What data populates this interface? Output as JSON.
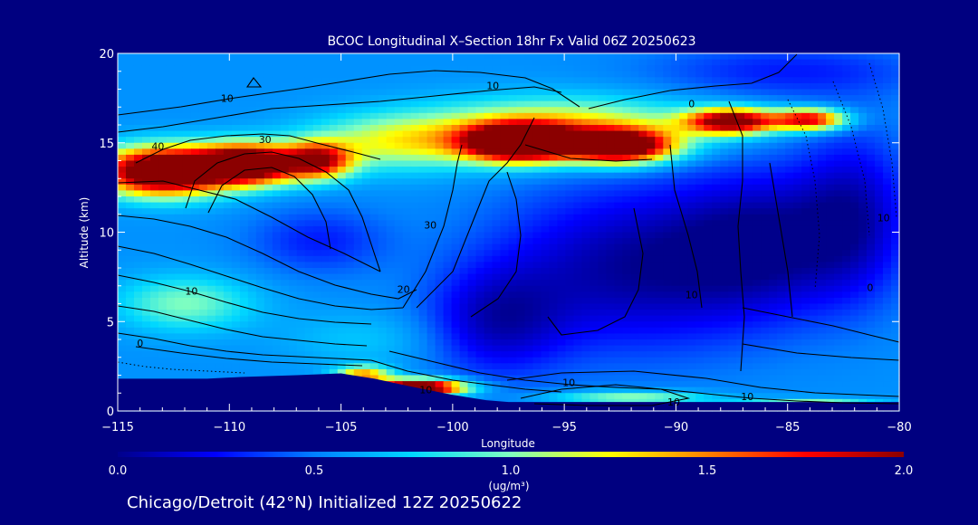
{
  "chart_data": {
    "type": "heatmap",
    "title": "BCOC Longitudinal X–Section 18hr  Fx Valid 06Z 20250623",
    "subtitle": "Chicago/Detroit (42°N) Initialized 12Z 20250622",
    "xlabel": "Longitude",
    "ylabel": "Altitude (km)",
    "xlim": [
      -115,
      -80
    ],
    "ylim": [
      0,
      20
    ],
    "x_ticks": [
      -115,
      -110,
      -105,
      -100,
      -95,
      -90,
      -85,
      -80
    ],
    "x_tick_labels": [
      "−115",
      "−110",
      "−105",
      "−100",
      "−95",
      "−90",
      "−85",
      "−80"
    ],
    "y_ticks": [
      0,
      5,
      10,
      15,
      20
    ],
    "y_tick_labels": [
      "0",
      "5",
      "10",
      "15",
      "20"
    ],
    "colorbar": {
      "range": [
        0.0,
        2.0
      ],
      "ticks": [
        0.0,
        0.5,
        1.0,
        1.5,
        2.0
      ],
      "tick_labels": [
        "0.0",
        "0.5",
        "1.0",
        "1.5",
        "2.0"
      ],
      "unit_label": "(ug/m³)",
      "colors": [
        "#00008b",
        "#0000ff",
        "#0080ff",
        "#00d8ff",
        "#80ffc0",
        "#ffff00",
        "#ff8000",
        "#ff0000",
        "#8b0000"
      ]
    },
    "concentration_field": {
      "background_value": 0.55,
      "features": [
        {
          "lon": -113.0,
          "alt": 13.4,
          "value": 2.0,
          "sx": 2.8,
          "sy": 1.3
        },
        {
          "lon": -109.2,
          "alt": 13.8,
          "value": 1.9,
          "sx": 2.3,
          "sy": 1.1
        },
        {
          "lon": -106.0,
          "alt": 14.0,
          "value": 1.2,
          "sx": 1.5,
          "sy": 1.0
        },
        {
          "lon": -97.0,
          "alt": 15.0,
          "value": 2.0,
          "sx": 2.4,
          "sy": 1.0
        },
        {
          "lon": -92.5,
          "alt": 14.8,
          "value": 1.7,
          "sx": 2.3,
          "sy": 0.9
        },
        {
          "lon": -87.5,
          "alt": 16.2,
          "value": 1.6,
          "sx": 2.0,
          "sy": 0.7
        },
        {
          "lon": -84.0,
          "alt": 16.3,
          "value": 1.3,
          "sx": 1.6,
          "sy": 0.6
        },
        {
          "lon": -95.0,
          "alt": 15.8,
          "value": 0.8,
          "sx": 6.0,
          "sy": 1.6
        },
        {
          "lon": -102.5,
          "alt": 15.0,
          "value": 0.6,
          "sx": 4.0,
          "sy": 1.5
        },
        {
          "lon": -101.5,
          "alt": 1.3,
          "value": 1.9,
          "sx": 2.0,
          "sy": 0.45
        },
        {
          "lon": -104.0,
          "alt": 2.0,
          "value": 0.9,
          "sx": 1.2,
          "sy": 0.5
        },
        {
          "lon": -112.0,
          "alt": 6.0,
          "value": 0.45,
          "sx": 3.0,
          "sy": 1.5
        },
        {
          "lon": -92.0,
          "alt": 0.7,
          "value": 0.55,
          "sx": 3.5,
          "sy": 0.4
        },
        {
          "lon": -84.0,
          "alt": 0.35,
          "value": 0.6,
          "sx": 3.0,
          "sy": 0.3
        },
        {
          "lon": -92.0,
          "alt": 8.0,
          "value": -0.5,
          "sx": 6.0,
          "sy": 4.5
        },
        {
          "lon": -86.0,
          "alt": 9.5,
          "value": -0.45,
          "sx": 4.0,
          "sy": 4.0
        },
        {
          "lon": -82.0,
          "alt": 11.0,
          "value": -0.4,
          "sx": 2.5,
          "sy": 4.5
        },
        {
          "lon": -98.0,
          "alt": 5.0,
          "value": -0.4,
          "sx": 3.0,
          "sy": 3.0
        },
        {
          "lon": -106.0,
          "alt": 9.5,
          "value": -0.25,
          "sx": 3.0,
          "sy": 1.8
        },
        {
          "lon": -85.0,
          "alt": 19.0,
          "value": -0.25,
          "sx": 6.0,
          "sy": 1.5
        },
        {
          "lon": -104.0,
          "alt": 4.0,
          "value": 0.15,
          "sx": 3.5,
          "sy": 1.5
        }
      ]
    },
    "terrain": [
      [
        -115,
        1.8
      ],
      [
        -111,
        1.8
      ],
      [
        -109.5,
        1.9
      ],
      [
        -107,
        2.0
      ],
      [
        -105,
        2.1
      ],
      [
        -103.5,
        1.8
      ],
      [
        -102,
        1.4
      ],
      [
        -100,
        0.9
      ],
      [
        -98.5,
        0.6
      ],
      [
        -97.5,
        0.5
      ],
      [
        -80,
        0.5
      ]
    ],
    "contour_labels": [
      {
        "lon": -110.1,
        "alt": 17.3,
        "text": "10"
      },
      {
        "lon": -113.2,
        "alt": 14.6,
        "text": "40"
      },
      {
        "lon": -108.4,
        "alt": 15.0,
        "text": "30"
      },
      {
        "lon": -98.2,
        "alt": 18.0,
        "text": "10"
      },
      {
        "lon": -89.3,
        "alt": 17.0,
        "text": "0"
      },
      {
        "lon": -101.0,
        "alt": 10.2,
        "text": "30"
      },
      {
        "lon": -111.7,
        "alt": 6.5,
        "text": "10"
      },
      {
        "lon": -102.2,
        "alt": 6.6,
        "text": "20"
      },
      {
        "lon": -89.3,
        "alt": 6.3,
        "text": "10"
      },
      {
        "lon": -114.0,
        "alt": 3.6,
        "text": "0"
      },
      {
        "lon": -94.8,
        "alt": 1.4,
        "text": "10"
      },
      {
        "lon": -101.2,
        "alt": 1.0,
        "text": "10"
      },
      {
        "lon": -86.8,
        "alt": 0.6,
        "text": "10"
      },
      {
        "lon": -90.1,
        "alt": 0.3,
        "text": "10"
      },
      {
        "lon": -80.7,
        "alt": 10.6,
        "text": "10"
      },
      {
        "lon": -81.3,
        "alt": 6.7,
        "text": "0"
      }
    ]
  }
}
